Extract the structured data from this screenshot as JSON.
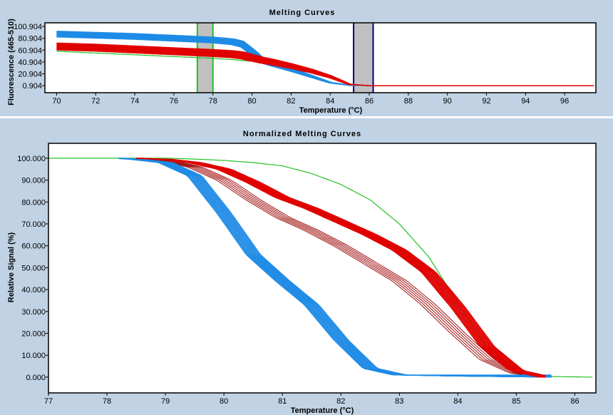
{
  "colors": {
    "background": "#c0d2e4",
    "blue": "#1e8be6",
    "red": "#e00000",
    "dark_red": "#a01010",
    "green": "#22c022",
    "region_blue": "#00008b",
    "region_gray": "#c0c0c0"
  },
  "chart_data": [
    {
      "type": "line",
      "title": "Melting Curves",
      "xlabel": "Temperature (°C)",
      "ylabel": "Fluorescence (465-510)",
      "xlim": [
        69.4,
        97.6
      ],
      "ylim": [
        -11,
        107
      ],
      "grid": false,
      "x_ticks": [
        "70",
        "72",
        "74",
        "76",
        "78",
        "80",
        "82",
        "84",
        "86",
        "88",
        "90",
        "92",
        "94",
        "96"
      ],
      "y_ticks": [
        "100.904",
        "80.904",
        "60.904",
        "40.904",
        "20.904",
        "0.904"
      ],
      "regions": [
        {
          "color": "green",
          "from": 77.2,
          "to": 78.0
        },
        {
          "color": "blue",
          "from": 85.2,
          "to": 86.2
        }
      ],
      "series": [
        {
          "color": "blue",
          "x": [
            70,
            72,
            74,
            76,
            78,
            79,
            79.5,
            80,
            80.5,
            81,
            82,
            83,
            84,
            85,
            86,
            97.5
          ],
          "y": [
            88,
            86,
            84,
            81,
            78,
            75,
            71,
            58,
            44,
            38,
            28,
            17,
            6,
            1.5,
            0.9,
            0.9
          ]
        },
        {
          "color": "red",
          "x": [
            70,
            72,
            74,
            76,
            78,
            79,
            79.5,
            80,
            80.5,
            81,
            82,
            83,
            84,
            85,
            86,
            97.5
          ],
          "y": [
            67,
            65,
            62,
            59,
            56,
            54,
            52,
            48,
            44,
            41,
            34,
            26,
            16,
            3,
            0.9,
            0.9
          ]
        },
        {
          "color": "green",
          "x": [
            70,
            72,
            74,
            76,
            78,
            79,
            80,
            81,
            82,
            83,
            84,
            85,
            86,
            97.5
          ],
          "y": [
            59,
            56,
            53,
            50,
            47,
            45,
            42,
            38,
            33,
            26,
            16,
            3,
            0.9,
            0.9
          ]
        }
      ]
    },
    {
      "type": "line",
      "title": "Normalized Melting Curves",
      "xlabel": "Temperature (°C)",
      "ylabel": "Relative Signal (%)",
      "xlim": [
        77,
        86.36
      ],
      "ylim": [
        -7.2,
        106.8
      ],
      "grid": false,
      "x_ticks": [
        "77",
        "78",
        "79",
        "80",
        "81",
        "82",
        "83",
        "84",
        "85",
        "86"
      ],
      "y_ticks": [
        "100.000",
        "90.000",
        "80.000",
        "70.000",
        "60.000",
        "50.000",
        "40.000",
        "30.000",
        "20.000",
        "10.000",
        "0.000"
      ],
      "series": [
        {
          "color": "blue",
          "x": [
            78.2,
            78.5,
            79,
            79.5,
            80,
            80.5,
            81,
            81.5,
            82,
            82.5,
            83,
            84,
            85,
            85.6
          ],
          "y": [
            100,
            99.5,
            98,
            92,
            75,
            56,
            44,
            33,
            17,
            4,
            1,
            0.5,
            0.2,
            0
          ]
        },
        {
          "color": "red",
          "x": [
            78.5,
            79,
            79.5,
            80,
            80.5,
            81,
            81.5,
            82,
            82.5,
            83,
            83.5,
            84,
            84.5,
            85,
            85.5
          ],
          "y": [
            100,
            99.5,
            98,
            95,
            89,
            82,
            77,
            71,
            65,
            58,
            48,
            32,
            14,
            3,
            0
          ]
        },
        {
          "color": "dark_red",
          "x": [
            78.5,
            79,
            79.5,
            80,
            80.5,
            81,
            81.5,
            82,
            82.5,
            83,
            83.5,
            84,
            84.5,
            85,
            85.5
          ],
          "y": [
            100,
            99,
            96,
            90,
            81,
            73,
            67,
            60,
            52,
            44,
            33,
            20,
            8,
            2,
            0
          ]
        },
        {
          "color": "green",
          "x": [
            77,
            78,
            79,
            79.5,
            80,
            80.5,
            81,
            81.5,
            82,
            82.5,
            83,
            83.5,
            84,
            84.5,
            85,
            85.5,
            86.3
          ],
          "y": [
            100,
            100,
            100,
            99.6,
            99,
            98,
            96.5,
            93,
            88,
            81,
            70,
            55,
            34,
            13,
            3,
            0.3,
            0
          ]
        }
      ]
    }
  ]
}
